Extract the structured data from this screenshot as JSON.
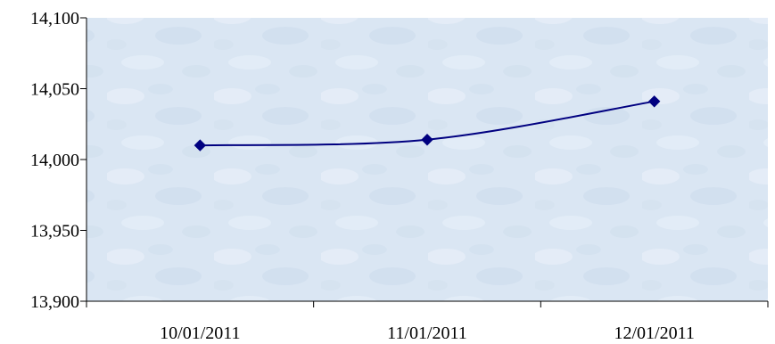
{
  "chart_data": {
    "type": "line",
    "title": "",
    "xlabel": "",
    "ylabel": "",
    "categories": [
      "10/01/2011",
      "11/01/2011",
      "12/01/2011"
    ],
    "series": [
      {
        "values": [
          14010,
          14014,
          14041
        ]
      }
    ],
    "ylim": [
      13900,
      14100
    ],
    "yticks": [
      "14,100",
      "14,050",
      "14,000",
      "13,950",
      "13,900"
    ],
    "ytick_values": [
      14100,
      14050,
      14000,
      13950,
      13900
    ],
    "grid": false,
    "legend": "none",
    "line_style": "smoothed",
    "marker": "diamond",
    "colors": {
      "line": "#000080",
      "marker": "#000080",
      "plot_background": "#dbe7f3",
      "axis": "#000000"
    }
  }
}
